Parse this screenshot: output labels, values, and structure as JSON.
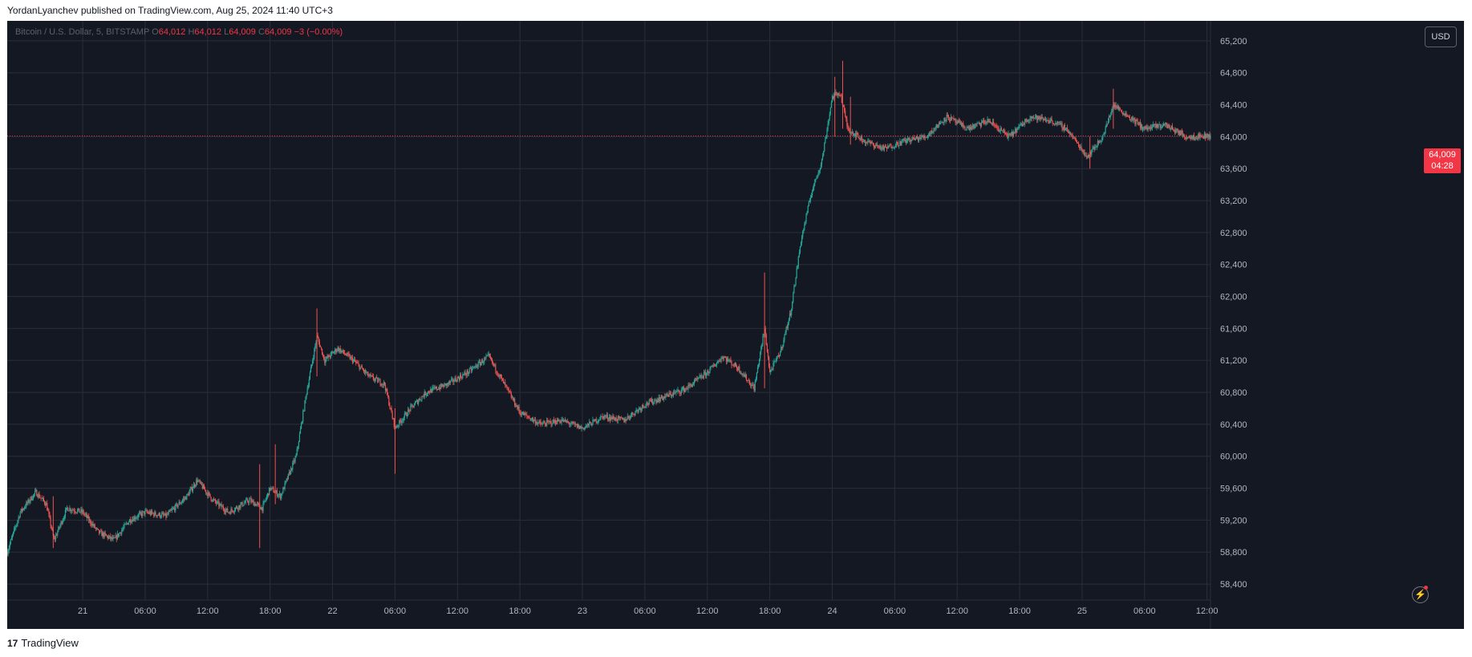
{
  "header": {
    "published": "YordanLyanchev published on TradingView.com, Aug 25, 2024 11:40 UTC+3"
  },
  "legend": {
    "symbol": "Bitcoin / U.S. Dollar, 5, BITSTAMP",
    "open_label": "O",
    "open": "64,012",
    "high_label": "H",
    "high": "64,012",
    "low_label": "L",
    "low": "64,009",
    "close_label": "C",
    "close": "64,009",
    "change": "−3 (−0.00%)"
  },
  "currency_button": "USD",
  "price_tag": {
    "price": "64,009",
    "countdown": "04:28"
  },
  "footer": {
    "logo_glyph": "17",
    "brand": "TradingView"
  },
  "colors": {
    "background": "#141823",
    "grid": "#2a2e39",
    "up": "#26a69a",
    "down": "#ef5350",
    "price_line": "#f23645",
    "axis_text": "#b2b5be"
  },
  "chart_data": {
    "type": "candlestick",
    "symbol": "Bitcoin / U.S. Dollar",
    "exchange": "BITSTAMP",
    "timeframe": "5",
    "currency": "USD",
    "last_price": 64009,
    "y_ticks": [
      58400,
      58800,
      59200,
      59600,
      60000,
      60400,
      60800,
      61200,
      61600,
      62000,
      62400,
      62800,
      63200,
      63600,
      64000,
      64400,
      64800,
      65200
    ],
    "y_tick_labels": [
      "58,400",
      "58,800",
      "59,200",
      "59,600",
      "60,000",
      "60,400",
      "60,800",
      "61,200",
      "61,600",
      "62,000",
      "62,400",
      "62,800",
      "63,200",
      "63,600",
      "64,000",
      "64,400",
      "64,800",
      "65,200"
    ],
    "y_range": [
      58200,
      65450
    ],
    "x_range": [
      "Aug 20 16:45",
      "Aug 25 12:20"
    ],
    "x_ticks": [
      {
        "label": "21",
        "time": "Aug 21 00:00"
      },
      {
        "label": "06:00",
        "time": "Aug 21 06:00"
      },
      {
        "label": "12:00",
        "time": "Aug 21 12:00"
      },
      {
        "label": "18:00",
        "time": "Aug 21 18:00"
      },
      {
        "label": "22",
        "time": "Aug 22 00:00"
      },
      {
        "label": "06:00",
        "time": "Aug 22 06:00"
      },
      {
        "label": "12:00",
        "time": "Aug 22 12:00"
      },
      {
        "label": "18:00",
        "time": "Aug 22 18:00"
      },
      {
        "label": "23",
        "time": "Aug 23 00:00"
      },
      {
        "label": "06:00",
        "time": "Aug 23 06:00"
      },
      {
        "label": "12:00",
        "time": "Aug 23 12:00"
      },
      {
        "label": "18:00",
        "time": "Aug 23 18:00"
      },
      {
        "label": "24",
        "time": "Aug 24 00:00"
      },
      {
        "label": "06:00",
        "time": "Aug 24 06:00"
      },
      {
        "label": "12:00",
        "time": "Aug 24 12:00"
      },
      {
        "label": "18:00",
        "time": "Aug 24 18:00"
      },
      {
        "label": "25",
        "time": "Aug 25 00:00"
      },
      {
        "label": "06:00",
        "time": "Aug 25 06:00"
      },
      {
        "label": "12:00",
        "time": "Aug 25 12:00"
      }
    ],
    "price_path": [
      [
        "Aug 20 16:45",
        58800
      ],
      [
        "Aug 20 18:00",
        59300
      ],
      [
        "Aug 20 19:30",
        59550
      ],
      [
        "Aug 20 20:30",
        59400
      ],
      [
        "Aug 20 21:15",
        58950
      ],
      [
        "Aug 20 22:30",
        59350
      ],
      [
        "Aug 21 00:00",
        59300
      ],
      [
        "Aug 21 01:30",
        59050
      ],
      [
        "Aug 21 03:00",
        58950
      ],
      [
        "Aug 21 04:30",
        59200
      ],
      [
        "Aug 21 06:00",
        59300
      ],
      [
        "Aug 21 08:00",
        59250
      ],
      [
        "Aug 21 10:00",
        59500
      ],
      [
        "Aug 21 11:00",
        59700
      ],
      [
        "Aug 21 12:30",
        59450
      ],
      [
        "Aug 21 14:00",
        59300
      ],
      [
        "Aug 21 16:00",
        59450
      ],
      [
        "Aug 21 17:15",
        59350
      ],
      [
        "Aug 21 18:00",
        59600
      ],
      [
        "Aug 21 19:00",
        59500
      ],
      [
        "Aug 21 20:30",
        60000
      ],
      [
        "Aug 21 21:30",
        60800
      ],
      [
        "Aug 21 22:30",
        61500
      ],
      [
        "Aug 21 23:15",
        61200
      ],
      [
        "Aug 22 00:30",
        61350
      ],
      [
        "Aug 22 02:00",
        61200
      ],
      [
        "Aug 22 03:30",
        61000
      ],
      [
        "Aug 22 05:00",
        60900
      ],
      [
        "Aug 22 06:00",
        60350
      ],
      [
        "Aug 22 07:30",
        60600
      ],
      [
        "Aug 22 09:00",
        60800
      ],
      [
        "Aug 22 11:00",
        60900
      ],
      [
        "Aug 22 13:00",
        61050
      ],
      [
        "Aug 22 15:00",
        61250
      ],
      [
        "Aug 22 16:30",
        60900
      ],
      [
        "Aug 22 18:00",
        60550
      ],
      [
        "Aug 22 20:00",
        60400
      ],
      [
        "Aug 22 22:00",
        60450
      ],
      [
        "Aug 23 00:00",
        60350
      ],
      [
        "Aug 23 02:00",
        60500
      ],
      [
        "Aug 23 04:00",
        60450
      ],
      [
        "Aug 23 06:00",
        60650
      ],
      [
        "Aug 23 08:00",
        60750
      ],
      [
        "Aug 23 10:00",
        60850
      ],
      [
        "Aug 23 12:00",
        61050
      ],
      [
        "Aug 23 13:30",
        61250
      ],
      [
        "Aug 23 15:00",
        61100
      ],
      [
        "Aug 23 16:30",
        60850
      ],
      [
        "Aug 23 17:30",
        61600
      ],
      [
        "Aug 23 18:00",
        61050
      ],
      [
        "Aug 23 19:00",
        61300
      ],
      [
        "Aug 23 20:00",
        61800
      ],
      [
        "Aug 23 21:00",
        62700
      ],
      [
        "Aug 23 22:00",
        63300
      ],
      [
        "Aug 23 23:00",
        63700
      ],
      [
        "Aug 24 00:00",
        64500
      ],
      [
        "Aug 24 00:45",
        64550
      ],
      [
        "Aug 24 01:30",
        64100
      ],
      [
        "Aug 24 03:00",
        63950
      ],
      [
        "Aug 24 05:00",
        63850
      ],
      [
        "Aug 24 07:00",
        63950
      ],
      [
        "Aug 24 09:00",
        64000
      ],
      [
        "Aug 24 11:00",
        64250
      ],
      [
        "Aug 24 13:00",
        64100
      ],
      [
        "Aug 24 15:00",
        64200
      ],
      [
        "Aug 24 17:00",
        64000
      ],
      [
        "Aug 24 19:00",
        64250
      ],
      [
        "Aug 24 21:00",
        64200
      ],
      [
        "Aug 24 22:30",
        64100
      ],
      [
        "Aug 25 00:30",
        63750
      ],
      [
        "Aug 25 02:00",
        64000
      ],
      [
        "Aug 25 03:00",
        64400
      ],
      [
        "Aug 25 04:30",
        64250
      ],
      [
        "Aug 25 06:00",
        64100
      ],
      [
        "Aug 25 08:00",
        64150
      ],
      [
        "Aug 25 10:00",
        64000
      ],
      [
        "Aug 25 11:40",
        64009
      ]
    ],
    "spikes": [
      [
        "Aug 20 21:10",
        58850,
        59500
      ],
      [
        "Aug 21 17:00",
        58850,
        59900
      ],
      [
        "Aug 21 18:30",
        59400,
        60150
      ],
      [
        "Aug 21 22:30",
        61000,
        61850
      ],
      [
        "Aug 22 06:00",
        59780,
        60600
      ],
      [
        "Aug 23 17:30",
        60850,
        62300
      ],
      [
        "Aug 24 00:15",
        64000,
        64750
      ],
      [
        "Aug 24 01:00",
        64100,
        64950
      ],
      [
        "Aug 24 01:45",
        63900,
        64500
      ],
      [
        "Aug 25 00:45",
        63600,
        64000
      ],
      [
        "Aug 25 03:00",
        64100,
        64600
      ]
    ]
  }
}
